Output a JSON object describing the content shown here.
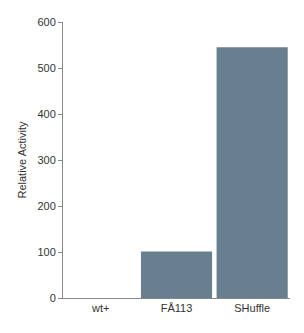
{
  "chart_data": {
    "type": "bar",
    "categories": [
      "wt+",
      "FÅ113",
      "SHuffle"
    ],
    "values": [
      0,
      101,
      545
    ],
    "color": "#687f8f",
    "y_label": "Relative Activity",
    "ylim": [
      0,
      600
    ],
    "yticks": [
      0,
      100,
      200,
      300,
      400,
      500,
      600
    ],
    "grid": false
  }
}
